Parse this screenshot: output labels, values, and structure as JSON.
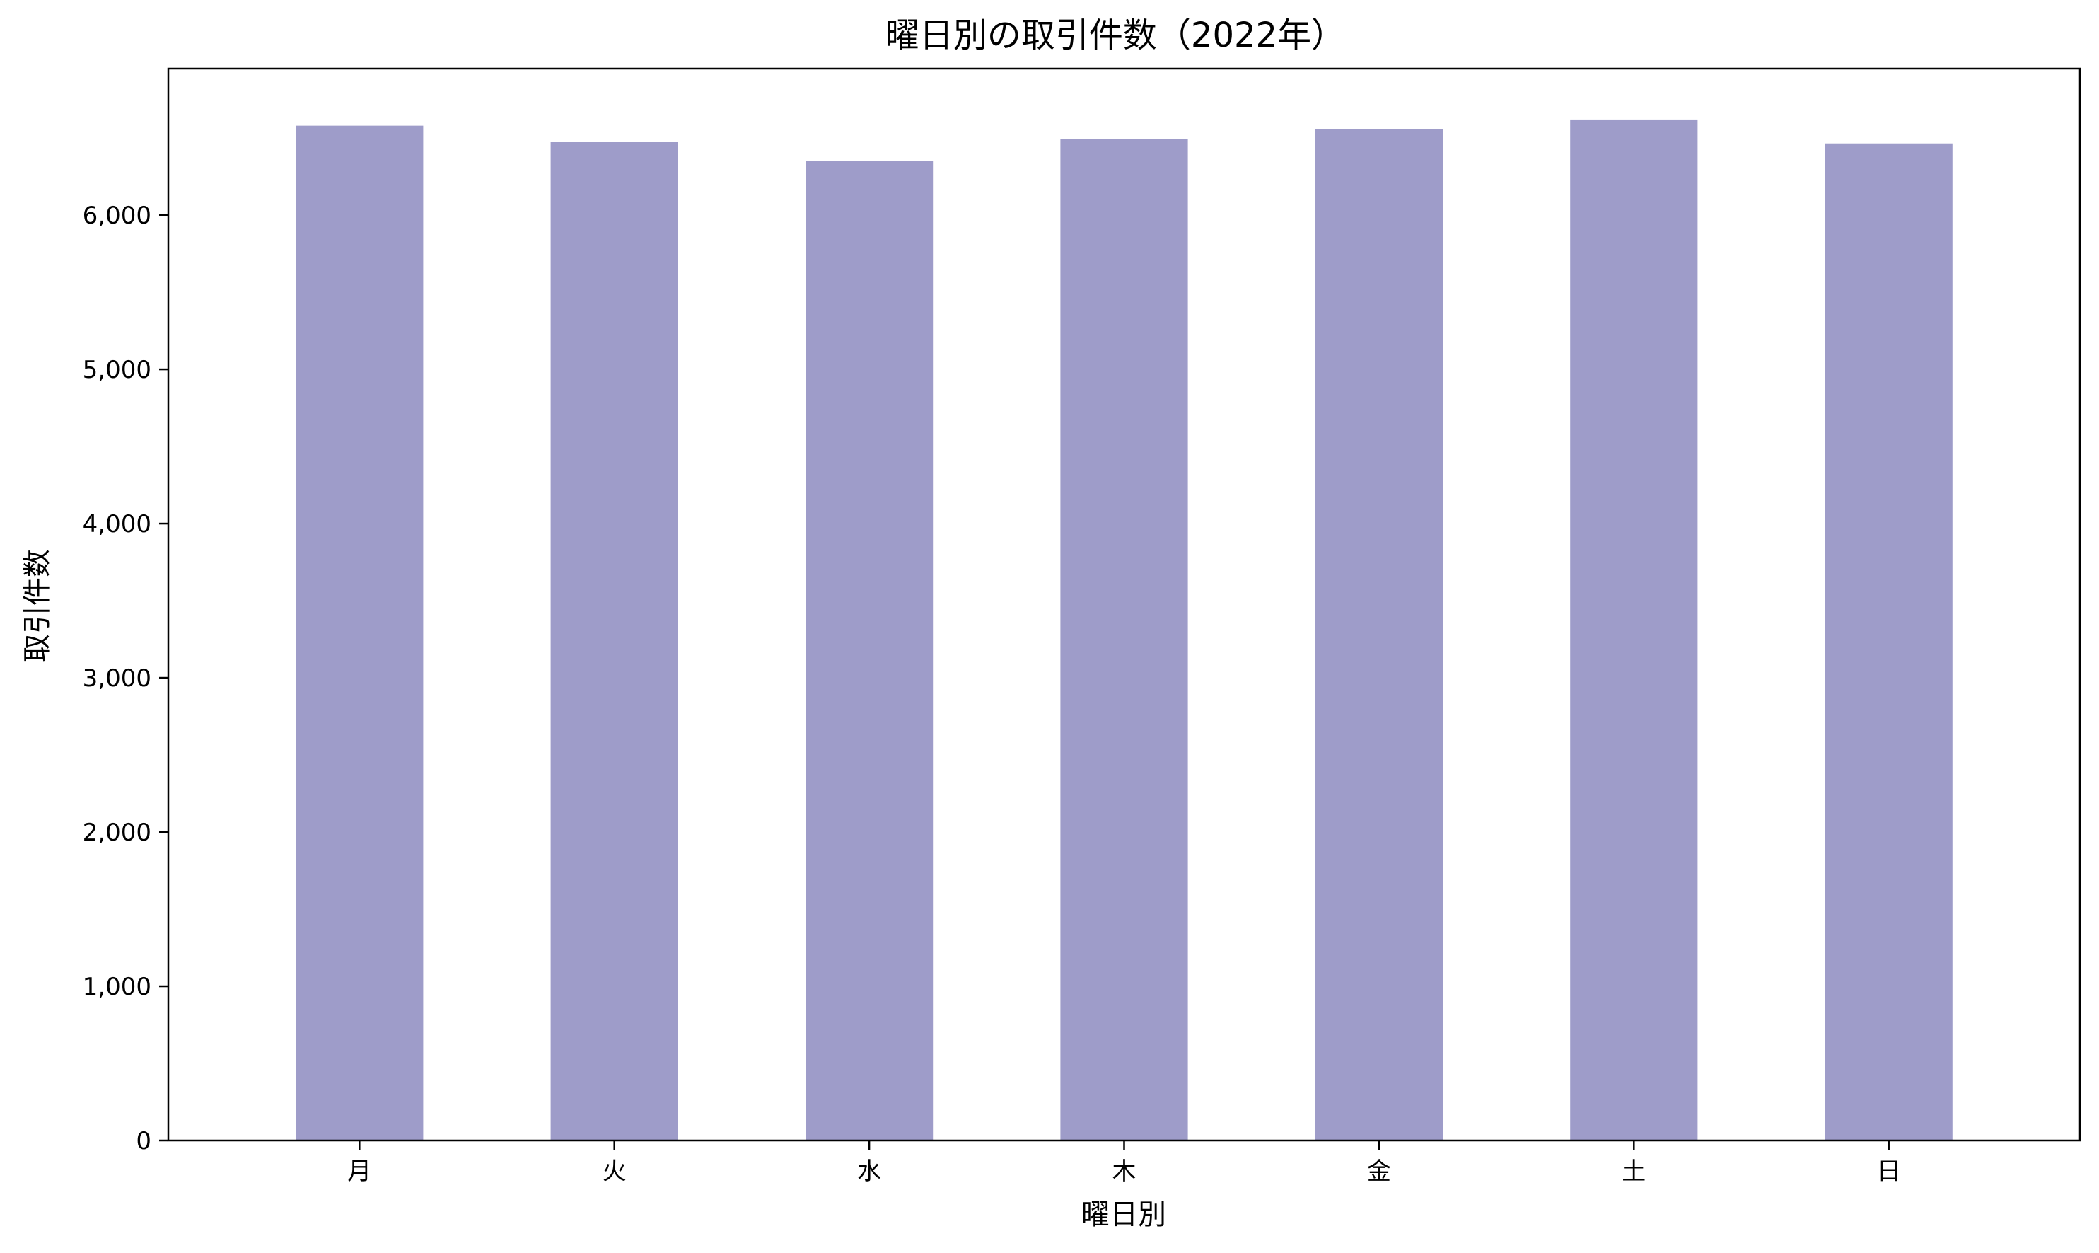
{
  "chart_data": {
    "type": "bar",
    "title": "曜日別の取引件数（2022年）",
    "xlabel": "曜日別",
    "ylabel": "取引件数",
    "categories": [
      "月",
      "火",
      "水",
      "木",
      "金",
      "土",
      "日"
    ],
    "series": [
      {
        "values": [
          6580,
          6475,
          6350,
          6495,
          6560,
          6620,
          6465
        ]
      }
    ],
    "ylim": [
      0,
      6950
    ],
    "yticks": [
      0,
      1000,
      2000,
      3000,
      4000,
      5000,
      6000
    ],
    "ytick_labels": [
      "0",
      "1,000",
      "2,000",
      "3,000",
      "4,000",
      "5,000",
      "6,000"
    ],
    "bar_color": "#9e9cc9",
    "grid": false,
    "legend": "none"
  }
}
